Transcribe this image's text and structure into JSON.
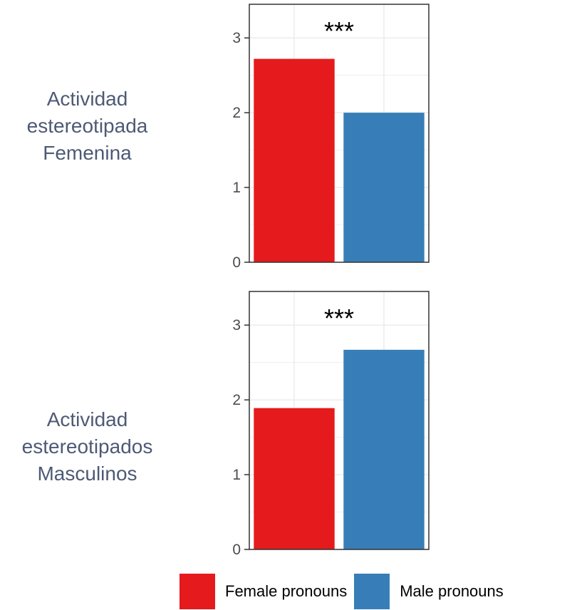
{
  "colors": {
    "female": "#E41A1C",
    "male": "#377EB8",
    "panel_border": "#333333",
    "grid": "#ebebeb"
  },
  "legend": [
    {
      "name": "Female pronouns",
      "color": "#E41A1C"
    },
    {
      "name": "Male pronouns",
      "color": "#377EB8"
    }
  ],
  "chart_data": [
    {
      "type": "bar",
      "row_label": [
        "Actividad",
        "estereotipada",
        "Femenina"
      ],
      "categories": [
        "Female pronouns",
        "Male pronouns"
      ],
      "series": [
        {
          "values": [
            2.72,
            2.0
          ]
        }
      ],
      "ylim": [
        0,
        3.45
      ],
      "yticks": [
        0,
        1,
        2,
        3
      ],
      "annotation": "***",
      "grid": true
    },
    {
      "type": "bar",
      "row_label": [
        "Actividad",
        "estereotipados",
        "Masculinos"
      ],
      "categories": [
        "Female pronouns",
        "Male pronouns"
      ],
      "series": [
        {
          "values": [
            1.89,
            2.67
          ]
        }
      ],
      "ylim": [
        0,
        3.45
      ],
      "yticks": [
        0,
        1,
        2,
        3
      ],
      "annotation": "***",
      "grid": true
    }
  ]
}
